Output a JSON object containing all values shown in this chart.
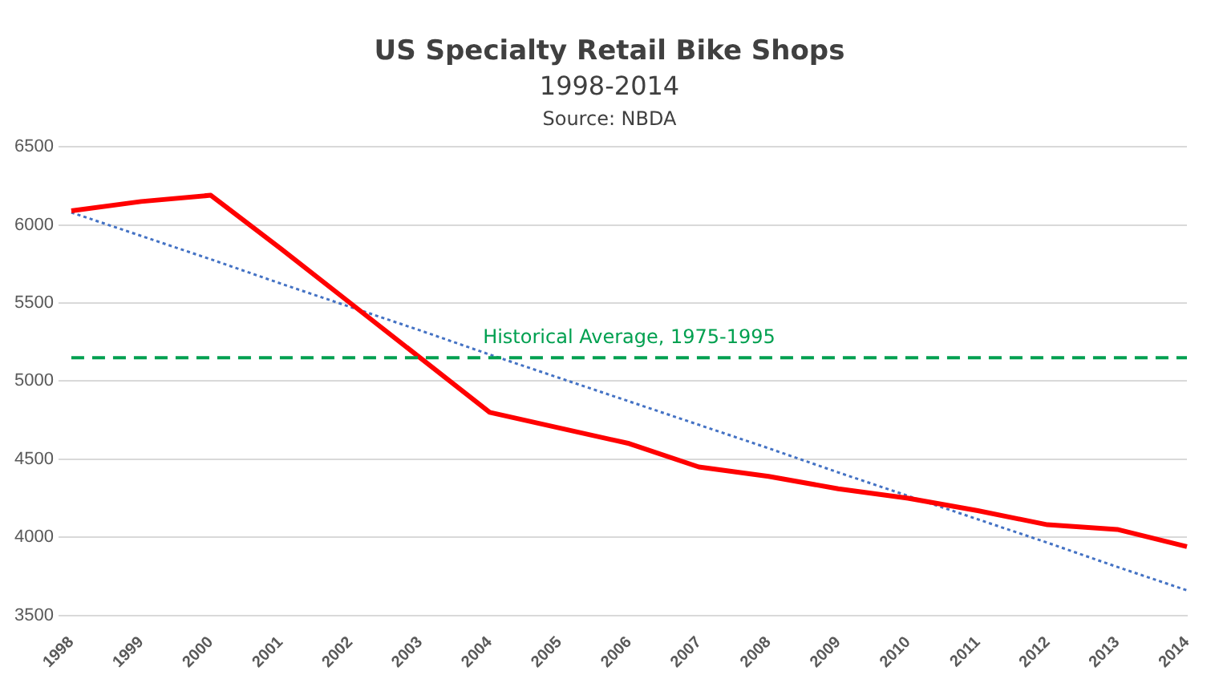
{
  "chart_data": {
    "type": "line",
    "title": "US Specialty Retail Bike Shops",
    "subtitle": "1998-2014",
    "annotations": [
      "Source: NBDA"
    ],
    "categories": [
      "1998",
      "1999",
      "2000",
      "2001",
      "2002",
      "2003",
      "2004",
      "2005",
      "2006",
      "2007",
      "2008",
      "2009",
      "2010",
      "2011",
      "2012",
      "2013",
      "2014"
    ],
    "series": [
      {
        "color": "#ff0000",
        "values": [
          6090,
          6150,
          6190,
          5850,
          5500,
          5150,
          4800,
          4700,
          4600,
          4450,
          4390,
          4310,
          4250,
          4170,
          4080,
          4050,
          3940
        ]
      },
      {
        "type": "line",
        "color": "#4472c4",
        "line_style": "dotted",
        "values": [
          6080,
          5930,
          5780,
          5625,
          5475,
          5325,
          5170,
          5020,
          4870,
          4720,
          4570,
          4415,
          4265,
          4115,
          3965,
          3810,
          3660
        ]
      }
    ],
    "ylim": [
      3500,
      6500
    ],
    "yticks": [
      3500,
      4000,
      4500,
      5000,
      5500,
      6000,
      6500
    ],
    "grid": "y",
    "legend": false,
    "marker": "none",
    "ref_lines": [
      {
        "axis": "y",
        "value": 5150,
        "label": "Historical Average, 1975-1995",
        "color": "#00a050",
        "line_style": "dashed"
      }
    ]
  }
}
